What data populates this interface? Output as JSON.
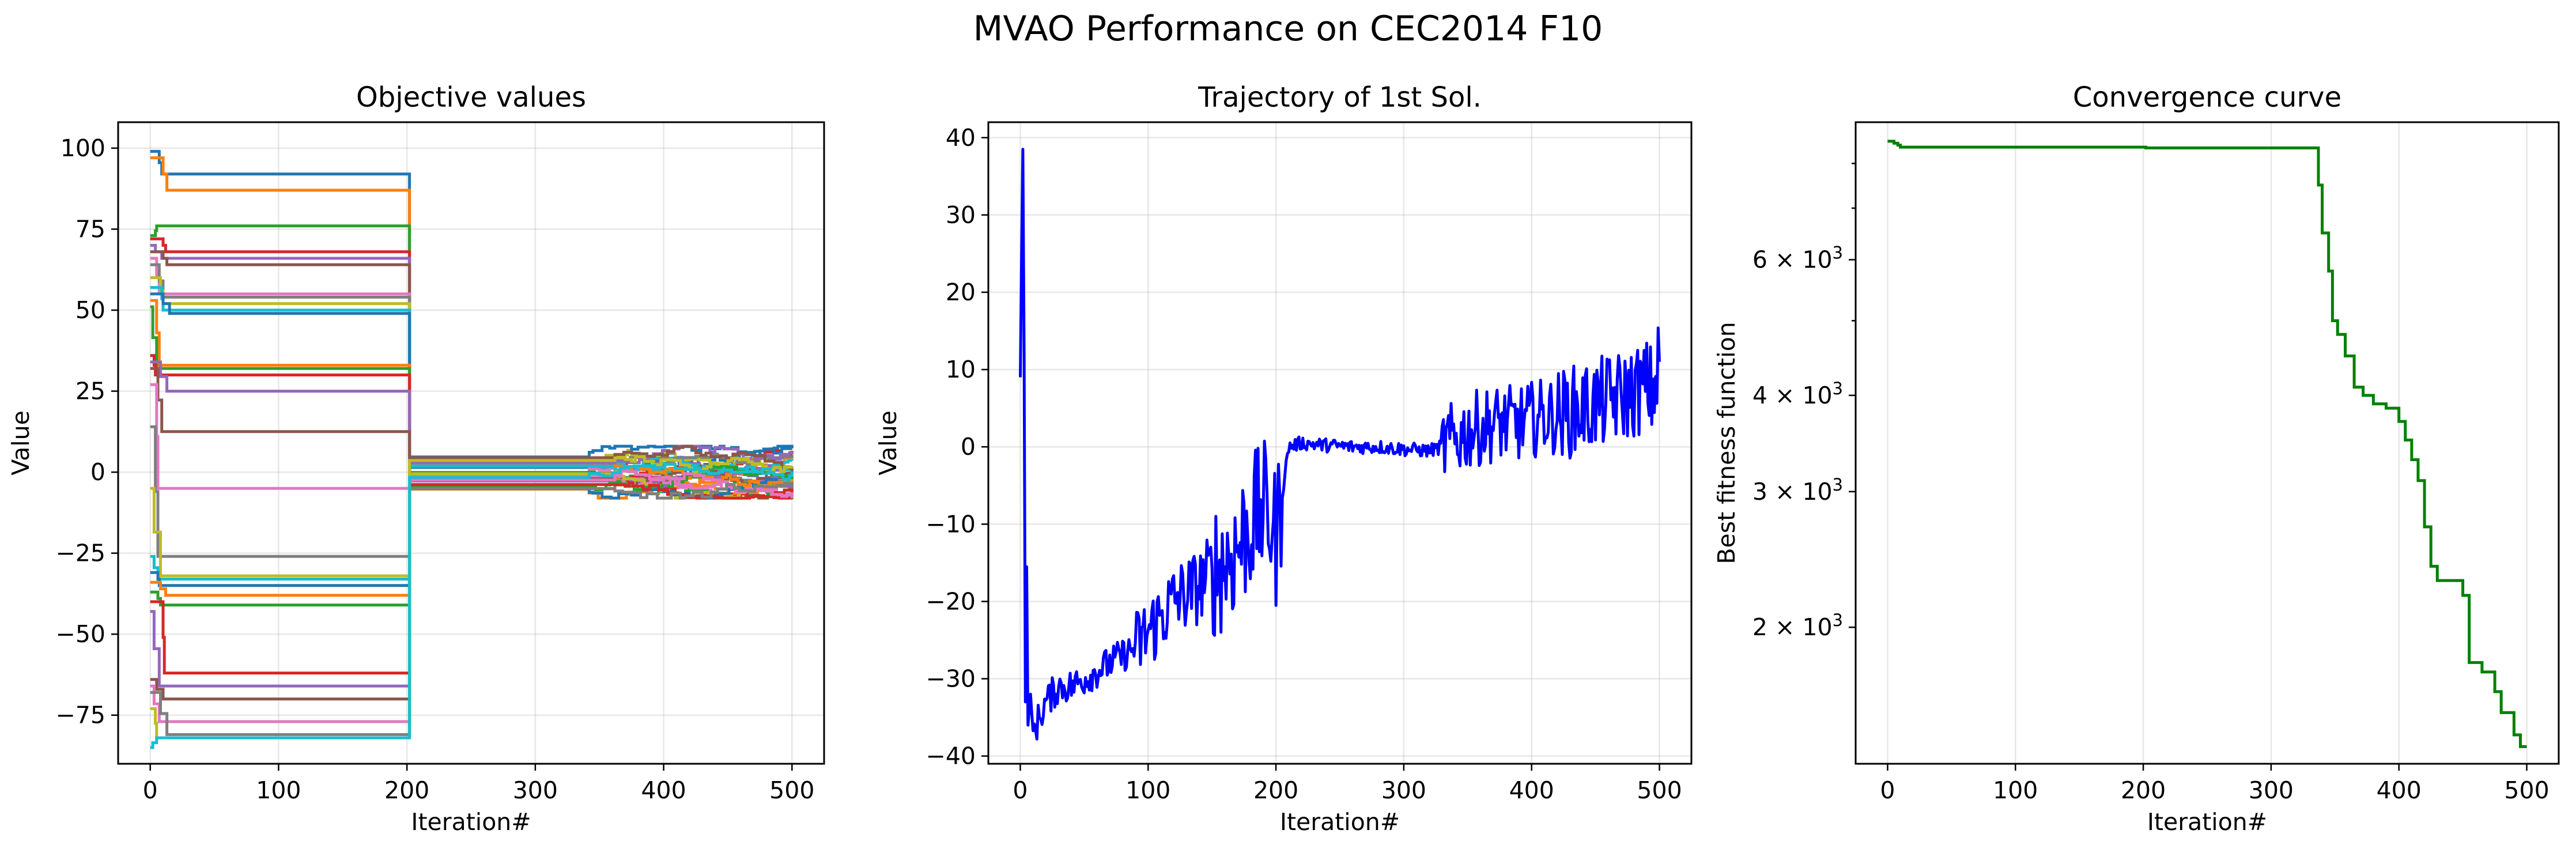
{
  "figure": {
    "suptitle": "MVAO Performance on CEC2014 F10"
  },
  "chart_data": [
    {
      "type": "line",
      "title": "Objective values",
      "xlabel": "Iteration#",
      "ylabel": "Value",
      "xlim": [
        -25,
        525
      ],
      "ylim": [
        -90,
        108
      ],
      "xticks": [
        0,
        100,
        200,
        300,
        400,
        500
      ],
      "yticks": [
        -75,
        -50,
        -25,
        0,
        25,
        50,
        75,
        100
      ],
      "grid": true,
      "colors": [
        "#1f77b4",
        "#ff7f0e",
        "#2ca02c",
        "#d62728",
        "#9467bd",
        "#8c564b",
        "#e377c2",
        "#7f7f7f",
        "#bcbd22",
        "#17becf"
      ],
      "n_series": 30,
      "series_initial_values": [
        99,
        97,
        73,
        72,
        70,
        68,
        66,
        64,
        60,
        57,
        55,
        53,
        51,
        36,
        34,
        32,
        27,
        14,
        -5,
        -26,
        -31,
        -34,
        -37,
        -40,
        -43,
        -64,
        -66,
        -68,
        -73,
        -85
      ],
      "series_plateau_values": [
        92,
        87,
        76,
        68,
        66,
        64,
        55,
        54,
        52,
        50,
        49,
        33,
        32,
        30,
        25,
        12.5,
        -5,
        -26,
        -32,
        -33,
        -35,
        -38,
        -41,
        -62,
        -66,
        -70,
        -77,
        -81,
        -82,
        -82
      ],
      "switch_iteration": 202,
      "late_range": [
        -8,
        8
      ],
      "iterations": 500
    },
    {
      "type": "line",
      "title": "Trajectory of 1st Sol.",
      "xlabel": "Iteration#",
      "ylabel": "Value",
      "xlim": [
        -25,
        525
      ],
      "ylim": [
        -41,
        42
      ],
      "xticks": [
        0,
        100,
        200,
        300,
        400,
        500
      ],
      "yticks": [
        -40,
        -30,
        -20,
        -10,
        0,
        10,
        20,
        30,
        40
      ],
      "grid": true,
      "color": "#0000ff",
      "x": [
        0,
        2,
        3,
        4,
        5,
        6,
        8,
        10,
        15,
        20,
        30,
        40,
        50,
        60,
        70,
        80,
        90,
        100,
        110,
        120,
        130,
        140,
        150,
        160,
        170,
        180,
        190,
        195,
        200,
        205,
        210,
        220,
        240,
        260,
        280,
        300,
        320,
        330,
        340,
        350,
        360,
        370,
        380,
        390,
        400,
        410,
        420,
        430,
        440,
        450,
        460,
        470,
        480,
        490,
        495,
        500
      ],
      "values": [
        9,
        38.5,
        12,
        -33,
        -15.5,
        -36,
        -32,
        -37,
        -35,
        -33,
        -31,
        -31,
        -30,
        -29,
        -28,
        -27,
        -26,
        -24,
        -22,
        -20,
        -19,
        -18,
        -16,
        -15,
        -13,
        -10,
        -8,
        -9,
        -12,
        -6,
        0,
        0.5,
        0.2,
        0,
        0,
        -0.3,
        -0.5,
        0,
        1,
        2,
        2.5,
        3,
        3,
        3,
        3.5,
        4,
        4,
        4.5,
        5,
        5.5,
        6,
        6.5,
        7,
        8,
        7,
        11
      ],
      "noise_envelope": "min/max band per iteration; widest between 90-200 and 330-500"
    },
    {
      "type": "line",
      "title": "Convergence curve",
      "xlabel": "Iteration#",
      "ylabel": "Best fitness function",
      "yscale": "log",
      "xlim": [
        -25,
        525
      ],
      "ylim": [
        1330,
        9050
      ],
      "xticks": [
        0,
        100,
        200,
        300,
        400,
        500
      ],
      "yticks_major_labels": [
        "6 × 10^3",
        "4 × 10^3",
        "3 × 10^3",
        "2 × 10^3"
      ],
      "yticks_major_values": [
        6000,
        4000,
        3000,
        2000
      ],
      "yticks_minor_values": [
        5000,
        7000,
        8000
      ],
      "grid": true,
      "color": "#008000",
      "x": [
        0,
        5,
        8,
        10,
        200,
        202,
        335,
        337,
        340,
        345,
        348,
        352,
        358,
        365,
        372,
        380,
        390,
        400,
        405,
        410,
        415,
        420,
        425,
        430,
        438,
        450,
        455,
        465,
        475,
        480,
        490,
        495,
        500
      ],
      "values": [
        8550,
        8500,
        8450,
        8400,
        8400,
        8380,
        8380,
        7500,
        6500,
        5800,
        5000,
        4800,
        4500,
        4100,
        4000,
        3900,
        3850,
        3700,
        3500,
        3300,
        3100,
        2700,
        2400,
        2300,
        2300,
        2200,
        1800,
        1750,
        1650,
        1550,
        1450,
        1400,
        1400
      ]
    }
  ]
}
